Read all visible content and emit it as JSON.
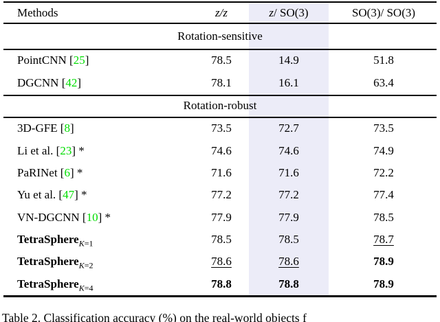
{
  "colors": {
    "highlight": "#ececf8",
    "citation": "#00dd00"
  },
  "header": {
    "methods": "Methods",
    "c1": "z/z",
    "c2_var": "z",
    "c2_rest": "/ SO(3)",
    "c3": "SO(3)/ SO(3)"
  },
  "sections": [
    {
      "title": "Rotation-sensitive"
    },
    {
      "title": "Rotation-robust"
    }
  ],
  "rows": [
    {
      "pre": "PointCNN [",
      "cite": "25",
      "post": "]",
      "c1": "78.5",
      "c2": "14.9",
      "c3": "51.8"
    },
    {
      "pre": "DGCNN [",
      "cite": "42",
      "post": "]",
      "c1": "78.1",
      "c2": "16.1",
      "c3": "63.4"
    },
    {
      "pre": "3D-GFE [",
      "cite": "8",
      "post": "]",
      "c1": "73.5",
      "c2": "72.7",
      "c3": "73.5"
    },
    {
      "pre": "Li et al. [",
      "cite": "23",
      "post": "] *",
      "c1": "74.6",
      "c2": "74.6",
      "c3": "74.9"
    },
    {
      "pre": "PaRINet [",
      "cite": "6",
      "post": "] *",
      "c1": "71.6",
      "c2": "71.6",
      "c3": "72.2"
    },
    {
      "pre": "Yu et al. [",
      "cite": "47",
      "post": "] *",
      "c1": "77.2",
      "c2": "77.2",
      "c3": "77.4"
    },
    {
      "pre": "VN-DGCNN [",
      "cite": "10",
      "post": "] *",
      "c1": "77.9",
      "c2": "77.9",
      "c3": "78.5"
    },
    {
      "name": "TetraSphere",
      "sub_var": "K",
      "sub_val": "=1",
      "c1": "78.5",
      "c2": "78.5",
      "c3": "78.7"
    },
    {
      "name": "TetraSphere",
      "sub_var": "K",
      "sub_val": "=2",
      "c1": "78.6",
      "c2": "78.6",
      "c3": "78.9"
    },
    {
      "name": "TetraSphere",
      "sub_var": "K",
      "sub_val": "=4",
      "c1": "78.8",
      "c2": "78.8",
      "c3": "78.9"
    }
  ],
  "caption": "Table 2. Classification accuracy (%) on the real-world objects f"
}
